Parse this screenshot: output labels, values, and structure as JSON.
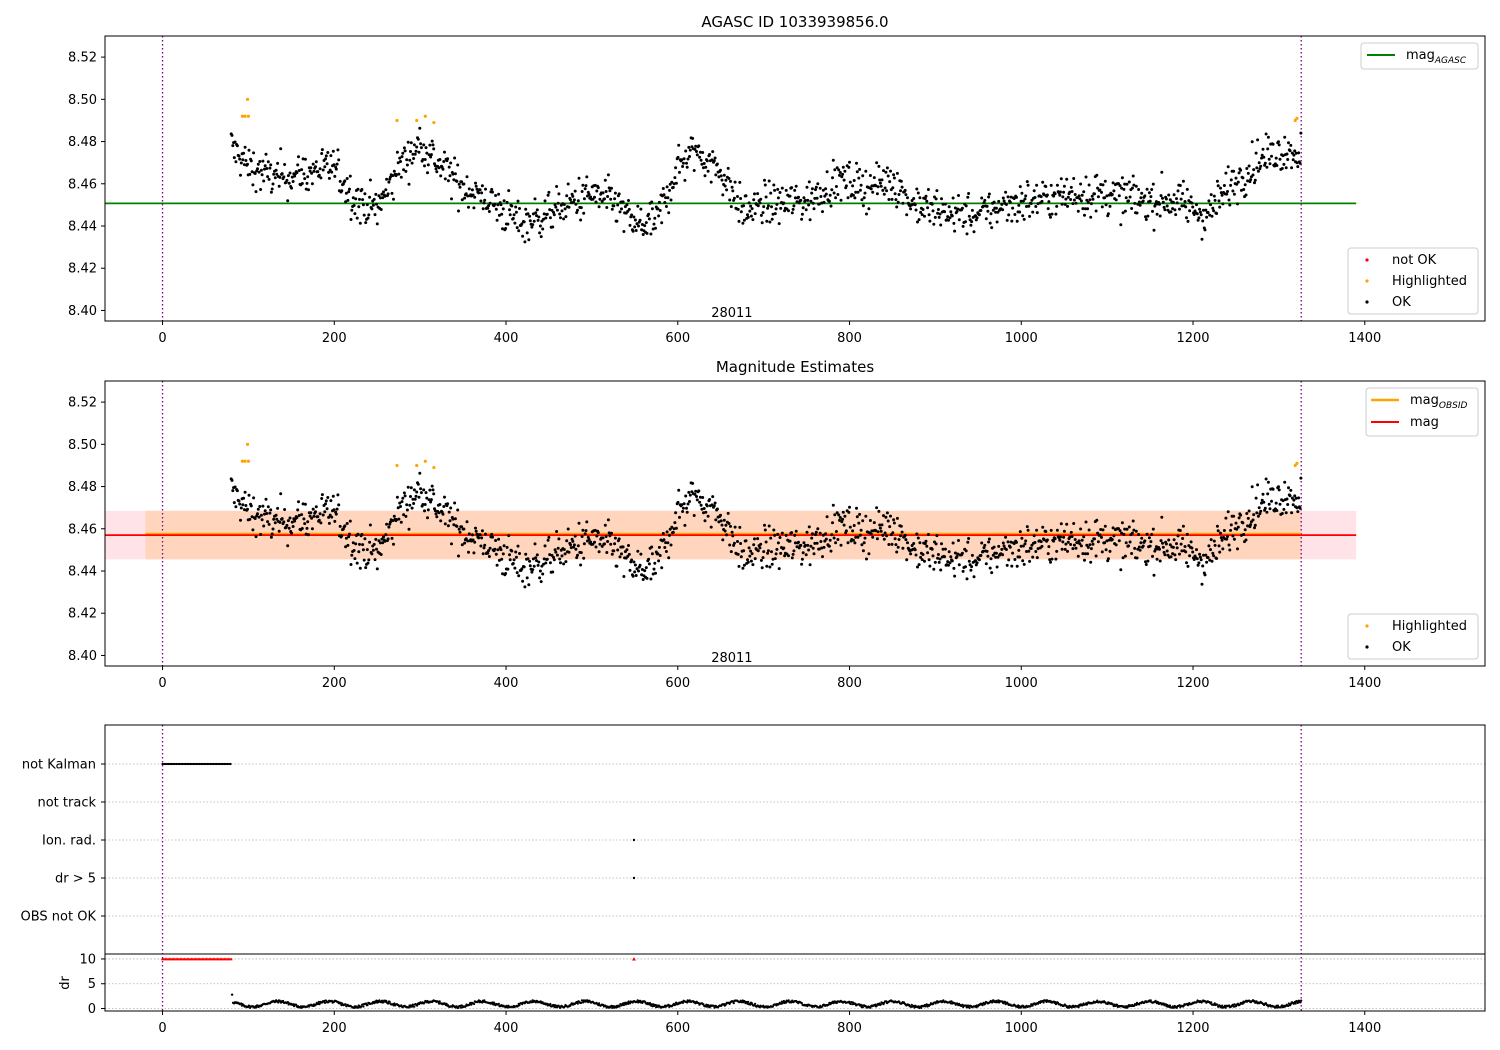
{
  "colors": {
    "ok": "#000000",
    "highlighted": "#ffa500",
    "not_ok": "#ff0000",
    "mag_agasc": "#008000",
    "mag_obsid": "#ffa500",
    "mag": "#ff0000",
    "obs_line": "#800080",
    "band_outer": "#ffc0cb",
    "band_inner": "#ffd0b0",
    "grid": "#b0b0b0"
  },
  "chart_data": [
    {
      "type": "scatter",
      "title": "AGASC ID 1033939856.0",
      "xlabel": "",
      "ylabel": "",
      "xlim": [
        -67,
        1540
      ],
      "ylim": [
        8.395,
        8.53
      ],
      "xticks": [
        "0",
        "200",
        "400",
        "600",
        "800",
        "1000",
        "1200",
        "1400"
      ],
      "yticks": [
        "8.40",
        "8.42",
        "8.44",
        "8.46",
        "8.48",
        "8.50",
        "8.52"
      ],
      "obs_lines": [
        0,
        1326
      ],
      "obsid_annotation": {
        "text": "28011",
        "x": 663,
        "y": 8.397
      },
      "series": [
        {
          "name": "not OK",
          "kind": "points",
          "x": [],
          "y": []
        },
        {
          "name": "Highlighted",
          "kind": "points",
          "x": [
            93,
            96,
            99,
            100,
            273,
            296,
            306,
            316,
            1319,
            1321
          ],
          "y": [
            8.492,
            8.492,
            8.5,
            8.492,
            8.49,
            8.49,
            8.492,
            8.489,
            8.49,
            8.491
          ]
        },
        {
          "name": "OK",
          "kind": "points",
          "description": "~1300 black points fluctuating between about 8.43 and 8.485 from x≈80 to x≈1326"
        },
        {
          "name": "mag_AGASC",
          "kind": "hline",
          "y": 8.4507,
          "xrange": [
            -67,
            1390
          ]
        }
      ],
      "legends": [
        {
          "position": "upper right",
          "entries": [
            "mag_AGASC"
          ]
        },
        {
          "position": "lower right",
          "entries": [
            "not OK",
            "Highlighted",
            "OK"
          ]
        }
      ]
    },
    {
      "type": "scatter",
      "title": "Magnitude Estimates",
      "xlabel": "",
      "ylabel": "",
      "xlim": [
        -67,
        1540
      ],
      "ylim": [
        8.395,
        8.53
      ],
      "xticks": [
        "0",
        "200",
        "400",
        "600",
        "800",
        "1000",
        "1200",
        "1400"
      ],
      "yticks": [
        "8.40",
        "8.42",
        "8.44",
        "8.46",
        "8.48",
        "8.50",
        "8.52"
      ],
      "obs_lines": [
        0,
        1326
      ],
      "obsid_annotation": {
        "text": "28011",
        "x": 663,
        "y": 8.397
      },
      "bands": [
        {
          "name": "mag band",
          "y": [
            8.4455,
            8.4685
          ],
          "xrange": [
            -67,
            1390
          ]
        },
        {
          "name": "mag_OBSID band",
          "y": [
            8.4455,
            8.4685
          ],
          "xrange": [
            -20,
            1326
          ]
        }
      ],
      "series": [
        {
          "name": "Highlighted",
          "kind": "points",
          "x": [
            93,
            96,
            99,
            100,
            273,
            296,
            306,
            316,
            1319,
            1321
          ],
          "y": [
            8.492,
            8.492,
            8.5,
            8.492,
            8.49,
            8.49,
            8.492,
            8.489,
            8.49,
            8.491
          ]
        },
        {
          "name": "OK",
          "kind": "points",
          "description": "same photometry as top panel"
        },
        {
          "name": "mag_OBSID",
          "kind": "hline",
          "y": 8.4575,
          "xrange": [
            -20,
            1326
          ]
        },
        {
          "name": "mag",
          "kind": "hline",
          "y": 8.457,
          "xrange": [
            -67,
            1390
          ]
        }
      ],
      "legends": [
        {
          "position": "upper right",
          "entries": [
            "mag_OBSID",
            "mag"
          ]
        },
        {
          "position": "lower right",
          "entries": [
            "Highlighted",
            "OK"
          ]
        }
      ]
    },
    {
      "type": "scatter",
      "title": "",
      "xlabel": "",
      "ylabel": "",
      "xlim": [
        -67,
        1540
      ],
      "flag_rows": [
        "not Kalman",
        "not track",
        "Ion. rad.",
        "dr > 5",
        "OBS not OK"
      ],
      "flags": {
        "not Kalman": {
          "x_range": [
            0,
            80
          ]
        },
        "not track": {
          "x": []
        },
        "Ion. rad.": {
          "x": [
            549
          ]
        },
        "dr > 5": {
          "x": [
            549
          ]
        },
        "OBS not OK": {
          "x": []
        }
      },
      "dr": {
        "ylabel": "dr",
        "ylim": [
          -0.5,
          11
        ],
        "yticks": [
          "0",
          "5",
          "10"
        ],
        "clipped_value": 10,
        "clipped_x_range": [
          0,
          80
        ],
        "clipped_single_x": [
          549
        ],
        "description": "black dr trace around 0.5–1.5 from x≈80 to 1326, spike near 2.8 at x≈81"
      },
      "xticks": [
        "0",
        "200",
        "400",
        "600",
        "800",
        "1000",
        "1200",
        "1400"
      ],
      "obs_lines": [
        0,
        1326
      ]
    }
  ]
}
